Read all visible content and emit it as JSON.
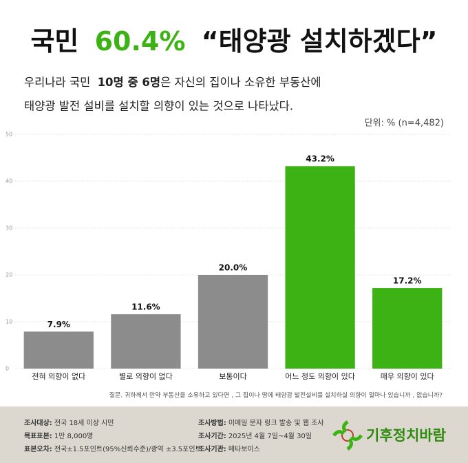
{
  "header": {
    "title_parts": [
      "국민",
      "60.4%",
      "“태양광 설치하겠다”"
    ],
    "subtitle_line1_parts": [
      "우리나라 국민",
      "10명 중 6명",
      "은 자신의 집이나 소유한 부동산에"
    ],
    "subtitle_line2": "태양광 발전 설비를 설치할 의향이 있는 것으로 나타났다.",
    "unit_note": "단위: %  (n=4,482)"
  },
  "chart_data": {
    "type": "bar",
    "categories": [
      "전혀 의향이 없다",
      "별로 의향이 없다",
      "보통이다",
      "어느 정도 의향이 있다",
      "매우 의향이 있다"
    ],
    "values": [
      7.9,
      11.6,
      20.0,
      43.2,
      17.2
    ],
    "value_labels": [
      "7.9%",
      "11.6%",
      "20.0%",
      "43.2%",
      "17.2%"
    ],
    "colors": [
      "#8c8c8c",
      "#8c8c8c",
      "#8c8c8c",
      "#3cb214",
      "#3cb214"
    ],
    "ylim": [
      0,
      50
    ],
    "yticks": [
      0,
      10,
      20,
      30,
      40,
      50
    ],
    "grid": true
  },
  "question": "질문. 귀하께서 만약 부동산을 소유하고 있다면 , 그 집이나 땅에 태양광 발전설비를 설치하실 의향이 얼마나 있습니까 , 없습니까?",
  "footer": {
    "left": [
      [
        "조사대상:",
        "전국 18세 이상 시민"
      ],
      [
        "목표표본:",
        "1만 8,000명"
      ],
      [
        "표본오차:",
        "전국±1.5포인트(95%신뢰수준)/광역 ±3.5포인트"
      ]
    ],
    "middle": [
      [
        "조사방법:",
        "이메일 문자 링크 발송 및 웹 조사"
      ],
      [
        "조사기간:",
        "2025년 4월 7일~4월 30일"
      ],
      [
        "조사기관:",
        "메타보이스"
      ]
    ],
    "logo": "기후정치바람"
  }
}
